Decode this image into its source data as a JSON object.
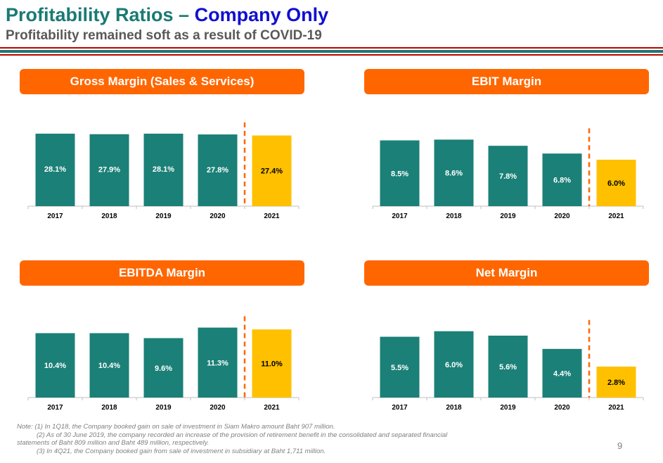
{
  "header": {
    "title_part1": "Profitability Ratios –",
    "title_part2": "Company Only",
    "subtitle": "Profitability remained soft as a result of COVID-19"
  },
  "colors": {
    "accent": "#FF6600",
    "title_teal": "#1A7A74",
    "title_blue": "#1010D0",
    "bar_teal": "#1B8077",
    "bar_highlight": "#FFC000",
    "stripe_red": "#C00000",
    "stripe_green": "#1A7A74"
  },
  "chart_data": [
    {
      "type": "bar",
      "title": "Gross Margin (Sales & Services)",
      "categories": [
        "2017",
        "2018",
        "2019",
        "2020",
        "2021"
      ],
      "values": [
        28.1,
        27.9,
        28.1,
        27.8,
        27.4
      ],
      "labels": [
        "28.1%",
        "27.9%",
        "28.1%",
        "27.8%",
        "27.4%"
      ],
      "highlight_index": 4,
      "divider_after_index": 3,
      "ylim": [
        0,
        30
      ],
      "grid": false
    },
    {
      "type": "bar",
      "title": "EBIT Margin",
      "categories": [
        "2017",
        "2018",
        "2019",
        "2020",
        "2021"
      ],
      "values": [
        8.5,
        8.6,
        7.8,
        6.8,
        6.0
      ],
      "labels": [
        "8.5%",
        "8.6%",
        "7.8%",
        "6.8%",
        "6.0%"
      ],
      "highlight_index": 4,
      "divider_after_index": 3,
      "ylim": [
        0,
        10
      ],
      "grid": false
    },
    {
      "type": "bar",
      "title": "EBITDA Margin",
      "categories": [
        "2017",
        "2018",
        "2019",
        "2020",
        "2021"
      ],
      "values": [
        10.4,
        10.4,
        9.6,
        11.3,
        11.0
      ],
      "labels": [
        "10.4%",
        "10.4%",
        "9.6%",
        "11.3%",
        "11.0%"
      ],
      "highlight_index": 4,
      "divider_after_index": 3,
      "ylim": [
        0,
        12.5
      ],
      "grid": false
    },
    {
      "type": "bar",
      "title": "Net Margin",
      "categories": [
        "2017",
        "2018",
        "2019",
        "2020",
        "2021"
      ],
      "values": [
        5.5,
        6.0,
        5.6,
        4.4,
        2.8
      ],
      "labels": [
        "5.5%",
        "6.0%",
        "5.6%",
        "4.4%",
        "2.8%"
      ],
      "highlight_index": 4,
      "divider_after_index": 3,
      "ylim": [
        0,
        7
      ],
      "grid": false
    }
  ],
  "notes": {
    "line1": "Note: (1) In 1Q18, the Company booked gain on sale of investment in Siam Makro amount Baht 907 million.",
    "line2": "(2) As of 30 June 2019, the company recorded an increase of the provision of retirement benefit in the consolidated and separated financial",
    "line3": "statements of Baht 809 million and Baht 489 million, respectively.",
    "line4": "(3) In 4Q21, the Company booked gain from sale of investment in subsidiary at Baht 1,711 million."
  },
  "page_number": "9"
}
